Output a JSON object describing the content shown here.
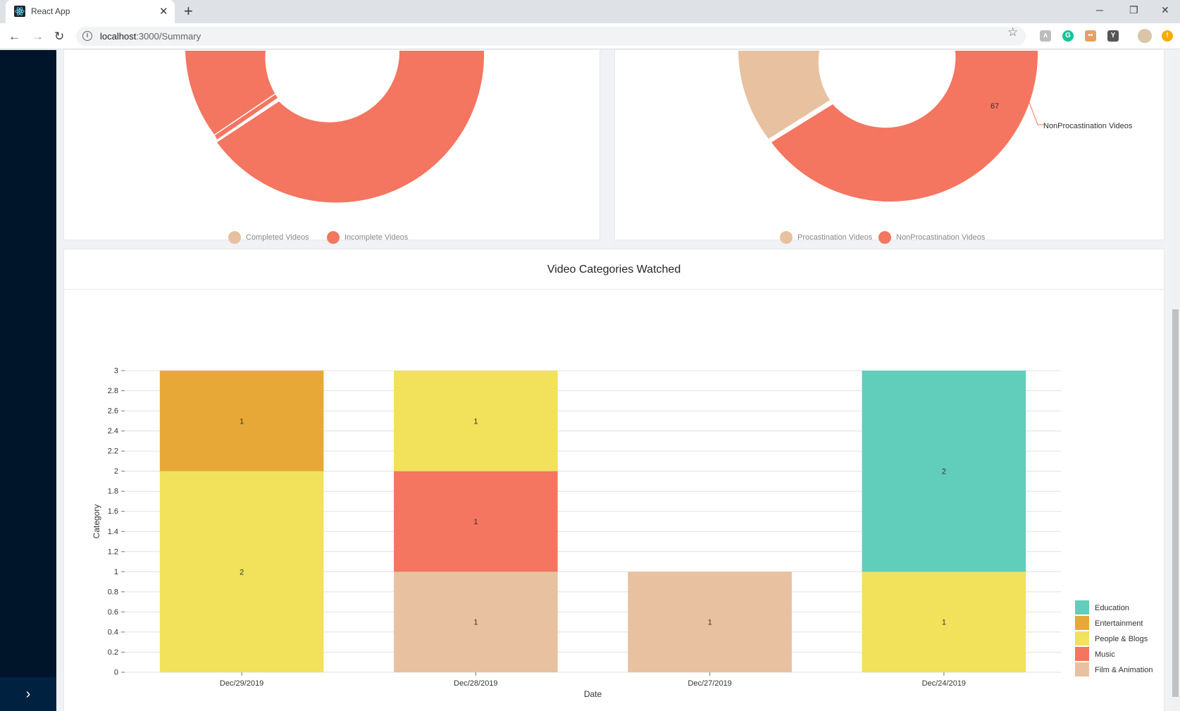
{
  "browser": {
    "tab_title": "React App",
    "url_host": "localhost",
    "url_path": ":3000/Summary"
  },
  "donut1": {
    "legend": [
      "Completed Videos",
      "Incomplete Videos"
    ],
    "colors": [
      "#e8c0a0",
      "#f47560"
    ]
  },
  "donut2": {
    "label_value": "67",
    "label_name": "NonProcastination Videos",
    "legend": [
      "Procastination Videos",
      "NonProcastination Videos"
    ],
    "colors": [
      "#e8c1a0",
      "#f47560"
    ]
  },
  "bar_card": {
    "title": "Video Categories Watched"
  },
  "chart_data": {
    "type": "bar",
    "stacked": true,
    "xlabel": "Date",
    "ylabel": "Category",
    "ylim": [
      0,
      3
    ],
    "yticks": [
      "0",
      "0.2",
      "0.4",
      "0.6",
      "0.8",
      "1",
      "1.2",
      "1.4",
      "1.6",
      "1.8",
      "2",
      "2.2",
      "2.4",
      "2.6",
      "2.8",
      "3"
    ],
    "categories": [
      "Dec/29/2019",
      "Dec/28/2019",
      "Dec/27/2019",
      "Dec/24/2019"
    ],
    "series": [
      {
        "name": "Film & Animation",
        "color": "#e8c1a0",
        "values": [
          0,
          1,
          1,
          0
        ]
      },
      {
        "name": "Music",
        "color": "#f47560",
        "values": [
          0,
          1,
          0,
          0
        ]
      },
      {
        "name": "People & Blogs",
        "color": "#f1e15b",
        "values": [
          2,
          1,
          0,
          1
        ]
      },
      {
        "name": "Entertainment",
        "color": "#e8a838",
        "values": [
          1,
          0,
          0,
          0
        ]
      },
      {
        "name": "Education",
        "color": "#61cdbb",
        "values": [
          0,
          0,
          0,
          2
        ]
      }
    ],
    "legend_order": [
      "Education",
      "Entertainment",
      "People & Blogs",
      "Music",
      "Film & Animation"
    ],
    "legend_position": "bottom-right",
    "grid": true
  }
}
